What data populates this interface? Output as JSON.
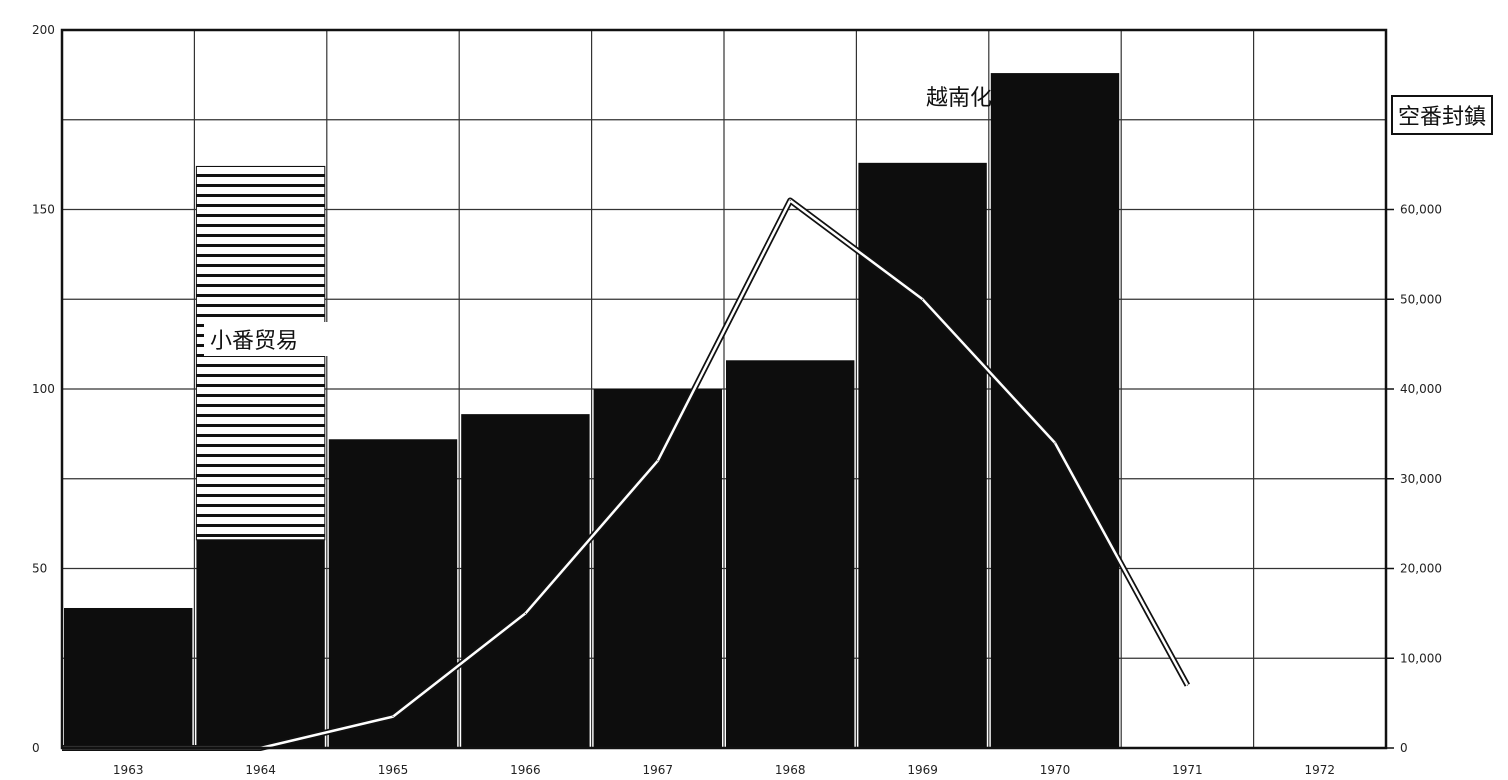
{
  "chart_data": {
    "type": "bar",
    "categories": [
      "1963",
      "1964",
      "1965",
      "1966",
      "1967",
      "1968",
      "1969",
      "1970",
      "1971",
      "1972"
    ],
    "ylim_left": [
      0,
      200
    ],
    "yticks_left": [
      "0",
      "50",
      "100",
      "150",
      "200"
    ],
    "ylim_right": [
      0,
      80000
    ],
    "yticks_right": [
      "0",
      "10,000",
      "20,000",
      "30,000",
      "40,000",
      "50,000",
      "60,000"
    ],
    "series": [
      {
        "values": [
          39,
          58,
          86,
          93,
          100,
          108,
          163,
          188,
          null,
          null
        ],
        "style": "solid-black"
      },
      {
        "values": [
          null,
          104,
          null,
          null,
          null,
          null,
          null,
          null,
          null,
          null
        ],
        "stacked_on": 0,
        "style": "horizontal-hatch"
      },
      {
        "values": [
          0,
          0,
          3500,
          15000,
          32000,
          61000,
          50000,
          34000,
          7000,
          null
        ],
        "axis": "right",
        "style": "line"
      }
    ],
    "annotations": {
      "hatch_label": "小番贸易",
      "peak_label": "越南化",
      "box_label": "空番封鎮"
    },
    "grid": true
  }
}
